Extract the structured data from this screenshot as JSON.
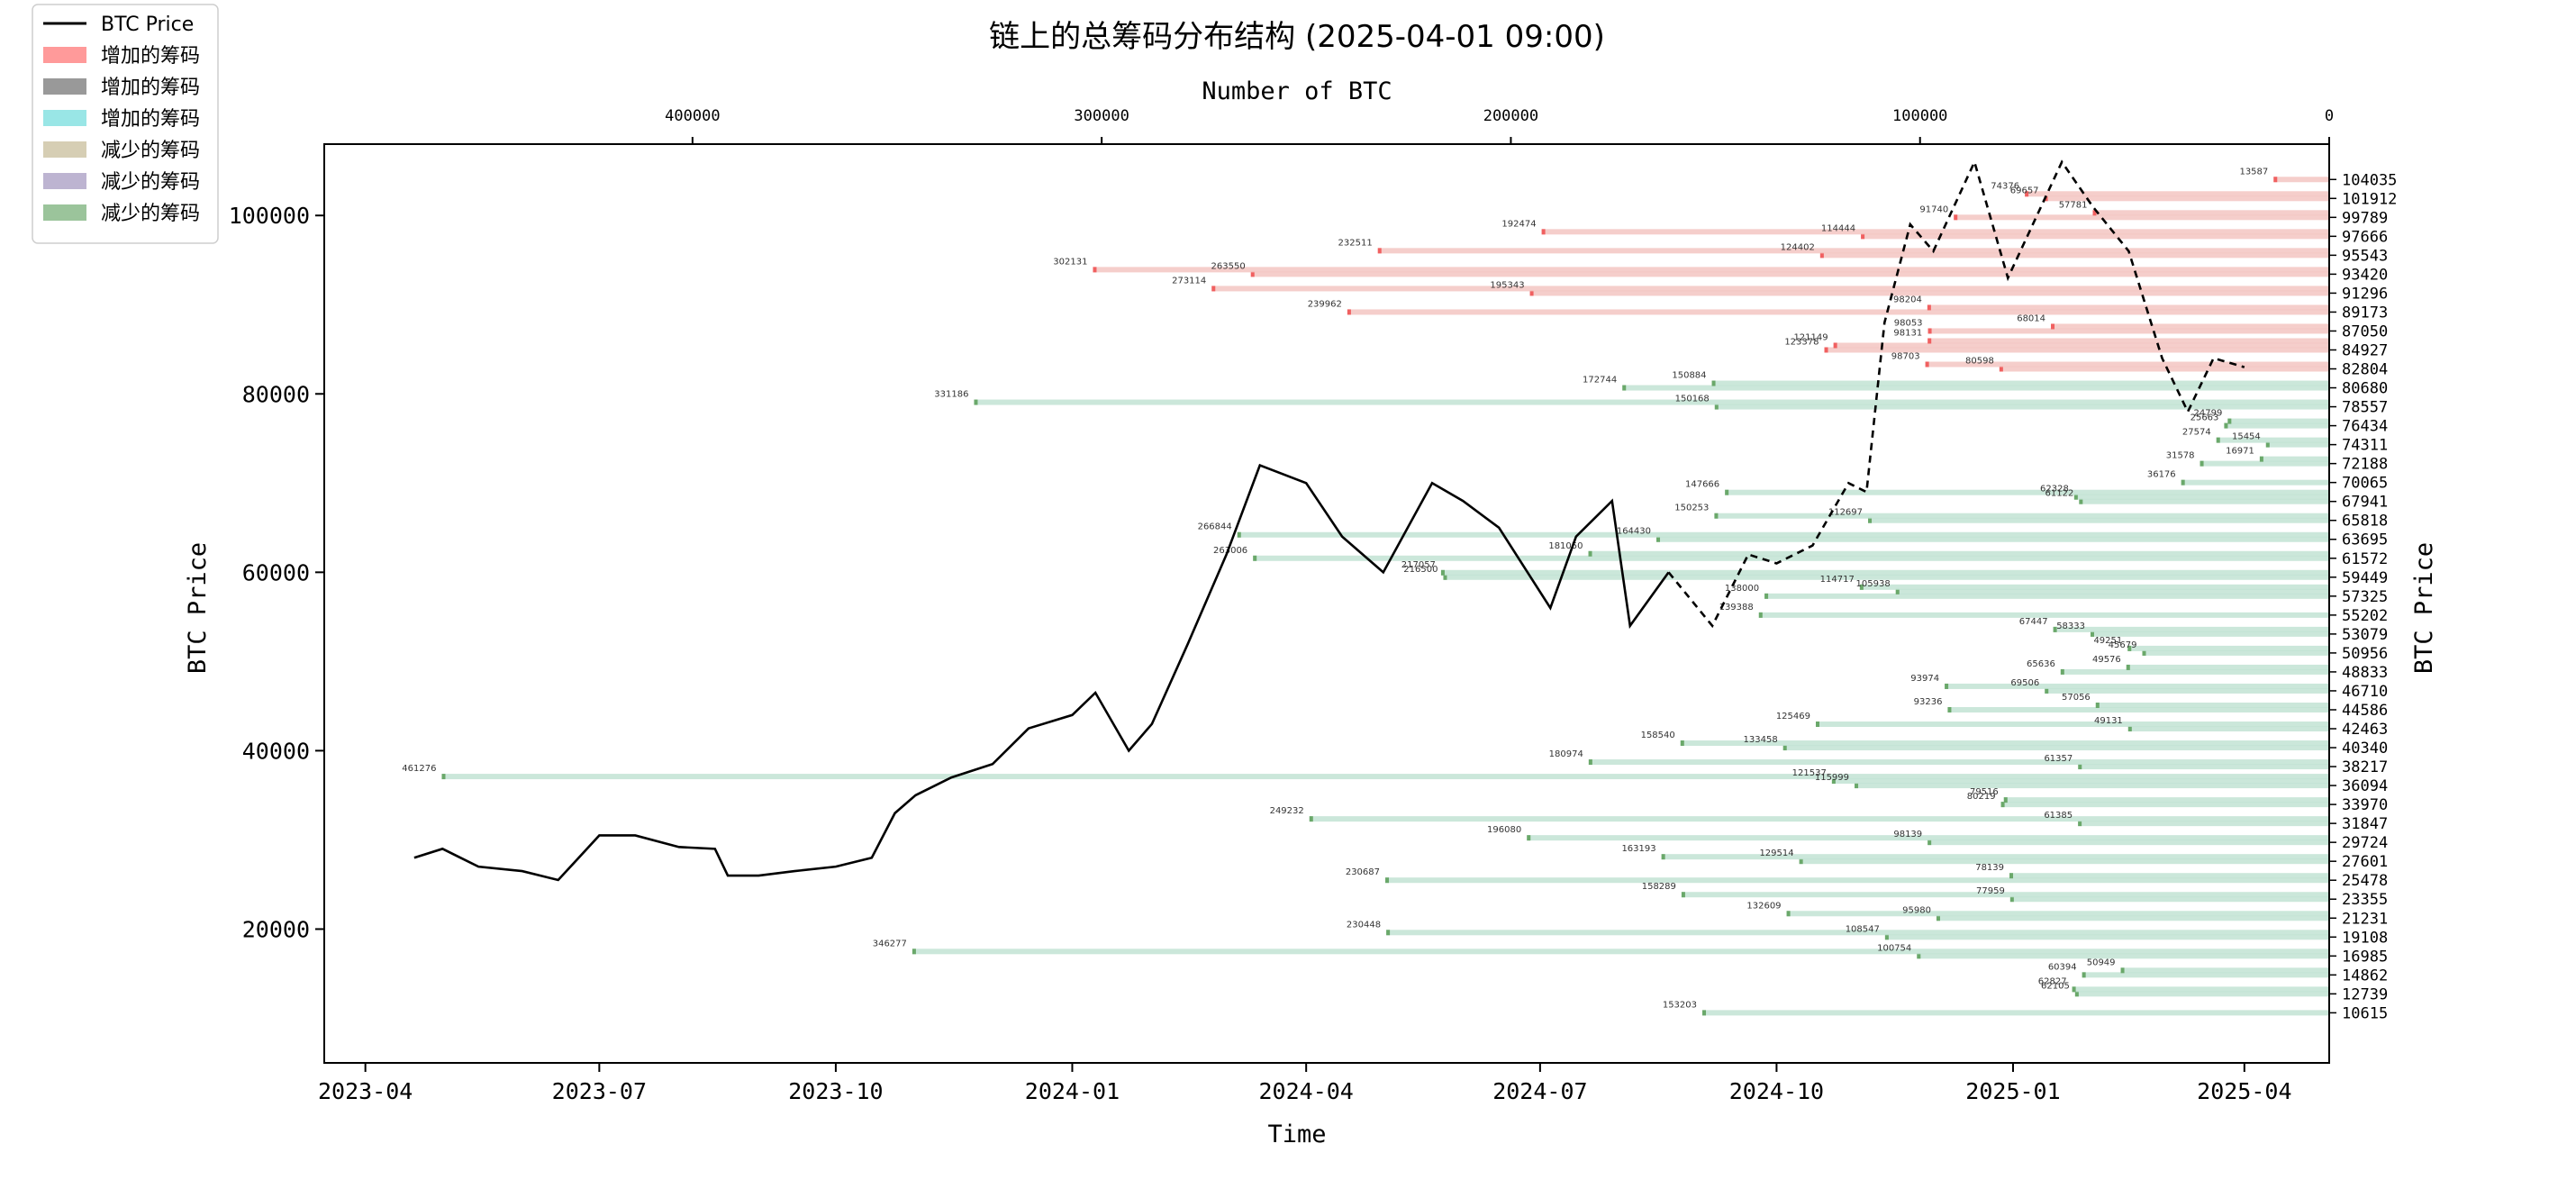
{
  "chart_data": {
    "type": "line",
    "title": "链上的总筹码分布结构 (2025-04-01 09:00)",
    "xlabel": "Time",
    "ylabel": "BTC Price",
    "ylabel_right": "BTC Price",
    "top_xlabel": "Number of BTC",
    "x_ticks": [
      "2023-04",
      "2023-07",
      "2023-10",
      "2024-01",
      "2024-04",
      "2024-07",
      "2024-10",
      "2025-01",
      "2025-04"
    ],
    "y_ticks": [
      20000,
      40000,
      60000,
      80000,
      100000
    ],
    "top_ticks": [
      400000,
      300000,
      200000,
      100000,
      0
    ],
    "ylim": [
      5000,
      108000
    ],
    "top_xlim": [
      490000,
      0
    ],
    "legend": [
      {
        "label": "BTC Price",
        "kind": "line",
        "color": "#000000"
      },
      {
        "label": "增加的筹码",
        "kind": "patch",
        "color": "#ff9a9a"
      },
      {
        "label": "增加的筹码",
        "kind": "patch",
        "color": "#999999"
      },
      {
        "label": "增加的筹码",
        "kind": "patch",
        "color": "#99e6e6"
      },
      {
        "label": "减少的筹码",
        "kind": "patch",
        "color": "#d6ceb4"
      },
      {
        "label": "减少的筹码",
        "kind": "patch",
        "color": "#bdb4d1"
      },
      {
        "label": "减少的筹码",
        "kind": "patch",
        "color": "#9bc49b"
      }
    ],
    "bar_colors": {
      "red_light": "#f3c6c2",
      "green_light": "#c2e3d4",
      "red_dark": "#f06060",
      "gray_dark": "#808080",
      "cyan_dark": "#7de3e3",
      "tan_dark": "#b8ae8a",
      "green_dark": "#6aa86a"
    },
    "price_series": {
      "name": "BTC Price",
      "x": [
        "2023-04-20",
        "2023-05-01",
        "2023-05-15",
        "2023-06-01",
        "2023-06-15",
        "2023-07-01",
        "2023-07-15",
        "2023-08-01",
        "2023-08-15",
        "2023-08-20",
        "2023-09-01",
        "2023-09-15",
        "2023-10-01",
        "2023-10-15",
        "2023-10-24",
        "2023-11-01",
        "2023-11-15",
        "2023-12-01",
        "2023-12-15",
        "2024-01-01",
        "2024-01-10",
        "2024-01-23",
        "2024-02-01",
        "2024-02-15",
        "2024-03-01",
        "2024-03-14",
        "2024-04-01",
        "2024-04-15",
        "2024-05-01",
        "2024-05-20",
        "2024-06-01",
        "2024-06-15",
        "2024-07-05",
        "2024-07-15",
        "2024-07-29",
        "2024-08-05",
        "2024-08-20",
        "2024-09-06",
        "2024-09-20",
        "2024-10-01",
        "2024-10-15",
        "2024-10-29",
        "2024-11-05",
        "2024-11-12",
        "2024-11-22",
        "2024-12-01",
        "2024-12-17",
        "2024-12-30",
        "2025-01-20",
        "2025-02-01",
        "2025-02-15",
        "2025-02-28",
        "2025-03-10",
        "2025-03-20",
        "2025-04-01"
      ],
      "y": [
        28000,
        29000,
        27000,
        26500,
        25500,
        30500,
        30500,
        29200,
        29000,
        26000,
        26000,
        26500,
        27000,
        28000,
        33000,
        35000,
        37000,
        38500,
        42500,
        44000,
        46500,
        40000,
        43000,
        52000,
        62000,
        72000,
        70000,
        64000,
        60000,
        70000,
        68000,
        65000,
        56000,
        64000,
        68000,
        54000,
        60000,
        54000,
        62000,
        61000,
        63000,
        70000,
        69000,
        88000,
        99000,
        96000,
        106000,
        93000,
        106000,
        101000,
        96000,
        84000,
        78000,
        84000,
        83000
      ],
      "dashed_from": "2024-09-01"
    },
    "distribution_rows": [
      {
        "price": 104035,
        "btc": 13587,
        "color": "red"
      },
      {
        "price": 101912,
        "btc": 69657,
        "color": "red"
      },
      {
        "price": 101912,
        "btc": 74376,
        "color": "red"
      },
      {
        "price": 99789,
        "btc": 91740,
        "color": "red"
      },
      {
        "price": 99789,
        "btc": 57781,
        "color": "red"
      },
      {
        "price": 97666,
        "btc": 114444,
        "color": "red"
      },
      {
        "price": 97666,
        "btc": 192474,
        "color": "red"
      },
      {
        "price": 95543,
        "btc": 124402,
        "color": "red"
      },
      {
        "price": 95543,
        "btc": 232511,
        "color": "red"
      },
      {
        "price": 93420,
        "btc": 263550,
        "color": "red"
      },
      {
        "price": 93420,
        "btc": 302131,
        "color": "red"
      },
      {
        "price": 91296,
        "btc": 195343,
        "color": "red"
      },
      {
        "price": 91296,
        "btc": 273114,
        "color": "red"
      },
      {
        "price": 89173,
        "btc": 239962,
        "color": "red"
      },
      {
        "price": 89173,
        "btc": 98204,
        "color": "red"
      },
      {
        "price": 87050,
        "btc": 98053,
        "color": "red"
      },
      {
        "price": 87050,
        "btc": 68014,
        "color": "red"
      },
      {
        "price": 84927,
        "btc": 123378,
        "color": "red"
      },
      {
        "price": 84927,
        "btc": 121149,
        "color": "red"
      },
      {
        "price": 84927,
        "btc": 98131,
        "color": "red"
      },
      {
        "price": 82804,
        "btc": 80598,
        "color": "red"
      },
      {
        "price": 82804,
        "btc": 98703,
        "color": "red"
      },
      {
        "price": 80680,
        "btc": 172744,
        "color": "green"
      },
      {
        "price": 80680,
        "btc": 150884,
        "color": "green"
      },
      {
        "price": 78557,
        "btc": 150168,
        "color": "green"
      },
      {
        "price": 78557,
        "btc": 331186,
        "color": "green"
      },
      {
        "price": 76434,
        "btc": 25663,
        "color": "green"
      },
      {
        "price": 76434,
        "btc": 24799,
        "color": "green"
      },
      {
        "price": 74311,
        "btc": 15454,
        "color": "green"
      },
      {
        "price": 74311,
        "btc": 27574,
        "color": "green"
      },
      {
        "price": 72188,
        "btc": 31578,
        "color": "green"
      },
      {
        "price": 72188,
        "btc": 16971,
        "color": "green"
      },
      {
        "price": 70065,
        "btc": 36176,
        "color": "green"
      },
      {
        "price": 67941,
        "btc": 61122,
        "color": "green"
      },
      {
        "price": 67941,
        "btc": 62328,
        "color": "green"
      },
      {
        "price": 67941,
        "btc": 147666,
        "color": "green"
      },
      {
        "price": 65818,
        "btc": 112697,
        "color": "green"
      },
      {
        "price": 65818,
        "btc": 150253,
        "color": "green"
      },
      {
        "price": 63695,
        "btc": 164430,
        "color": "green"
      },
      {
        "price": 63695,
        "btc": 266844,
        "color": "green"
      },
      {
        "price": 61572,
        "btc": 263006,
        "color": "green"
      },
      {
        "price": 61572,
        "btc": 181050,
        "color": "green"
      },
      {
        "price": 59449,
        "btc": 216500,
        "color": "green"
      },
      {
        "price": 59449,
        "btc": 217057,
        "color": "green"
      },
      {
        "price": 57325,
        "btc": 138000,
        "color": "green"
      },
      {
        "price": 57325,
        "btc": 105938,
        "color": "green"
      },
      {
        "price": 57325,
        "btc": 114717,
        "color": "green"
      },
      {
        "price": 55202,
        "btc": 139388,
        "color": "green"
      },
      {
        "price": 53079,
        "btc": 58333,
        "color": "green"
      },
      {
        "price": 53079,
        "btc": 67447,
        "color": "green"
      },
      {
        "price": 50956,
        "btc": 45679,
        "color": "green"
      },
      {
        "price": 50956,
        "btc": 49251,
        "color": "green"
      },
      {
        "price": 48833,
        "btc": 65636,
        "color": "green"
      },
      {
        "price": 48833,
        "btc": 49576,
        "color": "green"
      },
      {
        "price": 46710,
        "btc": 69506,
        "color": "green"
      },
      {
        "price": 46710,
        "btc": 93974,
        "color": "green"
      },
      {
        "price": 44586,
        "btc": 93236,
        "color": "green"
      },
      {
        "price": 44586,
        "btc": 57056,
        "color": "green"
      },
      {
        "price": 42463,
        "btc": 49131,
        "color": "green"
      },
      {
        "price": 42463,
        "btc": 125469,
        "color": "green"
      },
      {
        "price": 40340,
        "btc": 133458,
        "color": "green"
      },
      {
        "price": 40340,
        "btc": 158540,
        "color": "green"
      },
      {
        "price": 38217,
        "btc": 61357,
        "color": "green"
      },
      {
        "price": 38217,
        "btc": 180974,
        "color": "green"
      },
      {
        "price": 36094,
        "btc": 115999,
        "color": "green"
      },
      {
        "price": 36094,
        "btc": 121537,
        "color": "green"
      },
      {
        "price": 36094,
        "btc": 461276,
        "color": "green"
      },
      {
        "price": 33970,
        "btc": 80219,
        "color": "green"
      },
      {
        "price": 33970,
        "btc": 79516,
        "color": "green"
      },
      {
        "price": 31847,
        "btc": 61385,
        "color": "green"
      },
      {
        "price": 31847,
        "btc": 249232,
        "color": "green"
      },
      {
        "price": 29724,
        "btc": 98139,
        "color": "green"
      },
      {
        "price": 29724,
        "btc": 196080,
        "color": "green"
      },
      {
        "price": 27601,
        "btc": 129514,
        "color": "green"
      },
      {
        "price": 27601,
        "btc": 163193,
        "color": "green"
      },
      {
        "price": 25478,
        "btc": 230687,
        "color": "green"
      },
      {
        "price": 25478,
        "btc": 78139,
        "color": "green"
      },
      {
        "price": 23355,
        "btc": 77959,
        "color": "green"
      },
      {
        "price": 23355,
        "btc": 158289,
        "color": "green"
      },
      {
        "price": 21231,
        "btc": 95980,
        "color": "green"
      },
      {
        "price": 21231,
        "btc": 132609,
        "color": "green"
      },
      {
        "price": 19108,
        "btc": 108547,
        "color": "green"
      },
      {
        "price": 19108,
        "btc": 230448,
        "color": "green"
      },
      {
        "price": 16985,
        "btc": 100754,
        "color": "green"
      },
      {
        "price": 16985,
        "btc": 346277,
        "color": "green"
      },
      {
        "price": 14862,
        "btc": 60394,
        "color": "green"
      },
      {
        "price": 14862,
        "btc": 50949,
        "color": "green"
      },
      {
        "price": 12739,
        "btc": 62105,
        "color": "green"
      },
      {
        "price": 12739,
        "btc": 62827,
        "color": "green"
      },
      {
        "price": 10615,
        "btc": 153203,
        "color": "green"
      }
    ],
    "grid": false,
    "legend_placement": "top-left"
  }
}
